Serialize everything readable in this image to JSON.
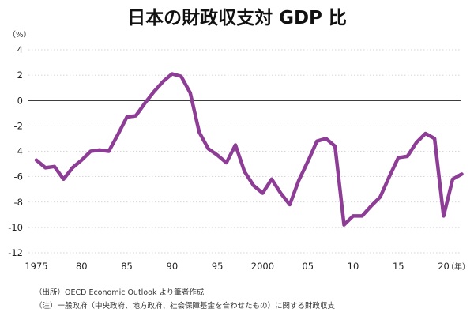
{
  "chart_data": {
    "type": "line",
    "title": "日本の財政収支対 GDP 比",
    "ylabel": "（%）",
    "xlabel": "",
    "x_unit_label": "（年）",
    "ylim": [
      -12,
      4
    ],
    "xlim": [
      1975,
      2021
    ],
    "yticks": [
      4,
      2,
      0,
      -2,
      -4,
      -6,
      -8,
      -10,
      -12
    ],
    "xticks": [
      {
        "year": 1975,
        "label": "1975"
      },
      {
        "year": 1980,
        "label": "80"
      },
      {
        "year": 1985,
        "label": "85"
      },
      {
        "year": 1990,
        "label": "90"
      },
      {
        "year": 1995,
        "label": "95"
      },
      {
        "year": 2000,
        "label": "2000"
      },
      {
        "year": 2005,
        "label": "05"
      },
      {
        "year": 2010,
        "label": "10"
      },
      {
        "year": 2015,
        "label": "15"
      },
      {
        "year": 2020,
        "label": "20"
      }
    ],
    "grid": true,
    "series": [
      {
        "name": "日本の財政収支対GDP比",
        "color": "#8e3d96",
        "points": [
          {
            "x": 1975,
            "y": -4.7
          },
          {
            "x": 1976,
            "y": -5.3
          },
          {
            "x": 1977,
            "y": -5.2
          },
          {
            "x": 1978,
            "y": -6.2
          },
          {
            "x": 1979,
            "y": -5.3
          },
          {
            "x": 1980,
            "y": -4.7
          },
          {
            "x": 1981,
            "y": -4.0
          },
          {
            "x": 1982,
            "y": -3.9
          },
          {
            "x": 1983,
            "y": -4.0
          },
          {
            "x": 1984,
            "y": -2.7
          },
          {
            "x": 1985,
            "y": -1.3
          },
          {
            "x": 1986,
            "y": -1.2
          },
          {
            "x": 1987,
            "y": -0.2
          },
          {
            "x": 1988,
            "y": 0.7
          },
          {
            "x": 1989,
            "y": 1.5
          },
          {
            "x": 1990,
            "y": 2.1
          },
          {
            "x": 1991,
            "y": 1.9
          },
          {
            "x": 1992,
            "y": 0.6
          },
          {
            "x": 1993,
            "y": -2.5
          },
          {
            "x": 1994,
            "y": -3.8
          },
          {
            "x": 1995,
            "y": -4.3
          },
          {
            "x": 1996,
            "y": -4.9
          },
          {
            "x": 1997,
            "y": -3.5
          },
          {
            "x": 1998,
            "y": -5.6
          },
          {
            "x": 1999,
            "y": -6.7
          },
          {
            "x": 2000,
            "y": -7.3
          },
          {
            "x": 2001,
            "y": -6.2
          },
          {
            "x": 2002,
            "y": -7.3
          },
          {
            "x": 2003,
            "y": -8.2
          },
          {
            "x": 2004,
            "y": -6.3
          },
          {
            "x": 2005,
            "y": -4.8
          },
          {
            "x": 2006,
            "y": -3.2
          },
          {
            "x": 2007,
            "y": -3.0
          },
          {
            "x": 2008,
            "y": -3.6
          },
          {
            "x": 2009,
            "y": -9.8
          },
          {
            "x": 2010,
            "y": -9.1
          },
          {
            "x": 2011,
            "y": -9.1
          },
          {
            "x": 2012,
            "y": -8.3
          },
          {
            "x": 2013,
            "y": -7.6
          },
          {
            "x": 2014,
            "y": -6.0
          },
          {
            "x": 2015,
            "y": -4.5
          },
          {
            "x": 2016,
            "y": -4.4
          },
          {
            "x": 2017,
            "y": -3.3
          },
          {
            "x": 2018,
            "y": -2.6
          },
          {
            "x": 2019,
            "y": -3.0
          },
          {
            "x": 2020,
            "y": -9.1
          },
          {
            "x": 2021,
            "y": -6.2
          },
          {
            "x": 2022,
            "y": -5.8
          }
        ]
      }
    ]
  },
  "notes": {
    "source": "（出所）OECD Economic Outlook より筆者作成",
    "remark": "（注）一般政府（中央政府、地方政府、社会保障基金を合わせたもの）に関する財政収支"
  },
  "colors": {
    "line": "#8e3d96",
    "zero_line": "#222222",
    "grid": "#c8c8c8"
  }
}
